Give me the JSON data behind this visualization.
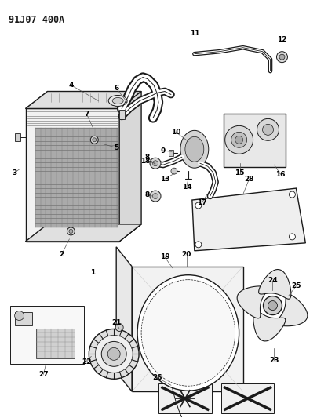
{
  "title": "91J07 400A",
  "bg_color": "#ffffff",
  "line_color": "#1a1a1a",
  "fig_width": 4.04,
  "fig_height": 5.33,
  "dpi": 100
}
